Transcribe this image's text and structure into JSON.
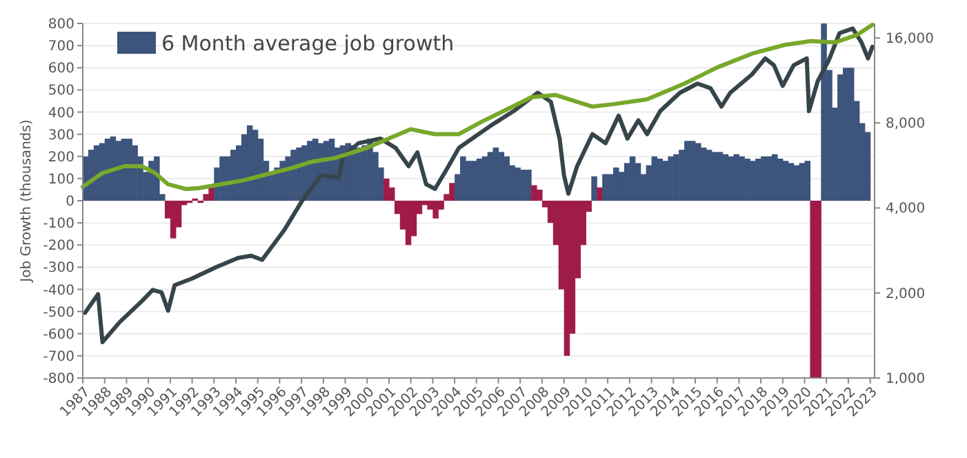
{
  "chart_data": {
    "type": "bar",
    "ylabel": "Job Growth (thousands)",
    "xlim": [
      1987,
      2023.2
    ],
    "xticks": [
      1987,
      1988,
      1989,
      1990,
      1991,
      1992,
      1993,
      1994,
      1995,
      1996,
      1997,
      1998,
      1999,
      2000,
      2001,
      2002,
      2003,
      2004,
      2005,
      2006,
      2007,
      2008,
      2009,
      2010,
      2011,
      2012,
      2013,
      2014,
      2015,
      2016,
      2017,
      2018,
      2019,
      2020,
      2021,
      2022,
      2023
    ],
    "ylim": [
      -800,
      800
    ],
    "yticks": [
      -800,
      -700,
      -600,
      -500,
      -400,
      -300,
      -200,
      -100,
      0,
      100,
      200,
      300,
      400,
      500,
      600,
      700,
      800
    ],
    "y2lim": [
      1000,
      18000
    ],
    "y2ticks": [
      {
        "value": 1000,
        "label": "1,000"
      },
      {
        "value": 2000,
        "label": "2,000"
      },
      {
        "value": 4000,
        "label": "4,000"
      },
      {
        "value": 8000,
        "label": "8,000"
      },
      {
        "value": 16000,
        "label": "16,000"
      }
    ],
    "log": "y2",
    "grid": "y",
    "legend": "top left",
    "series": [
      {
        "name": "6 Month average job growth",
        "color": "#3d557c",
        "x": [
          1987,
          1987.25,
          1987.5,
          1987.75,
          1988,
          1988.25,
          1988.5,
          1988.75,
          1989,
          1989.25,
          1989.5,
          1989.75,
          1990,
          1990.25,
          1990.5,
          1990.75,
          1991,
          1991.25,
          1991.5,
          1991.75,
          1992,
          1992.25,
          1992.5,
          1992.75,
          1993,
          1993.25,
          1993.5,
          1993.75,
          1994,
          1994.25,
          1994.5,
          1994.75,
          1995,
          1995.25,
          1995.5,
          1995.75,
          1996,
          1996.25,
          1996.5,
          1996.75,
          1997,
          1997.25,
          1997.5,
          1997.75,
          1998,
          1998.25,
          1998.5,
          1998.75,
          1999,
          1999.25,
          1999.5,
          1999.75,
          2000,
          2000.25,
          2000.5,
          2000.75,
          2001,
          2001.25,
          2001.5,
          2001.75,
          2002,
          2002.25,
          2002.5,
          2002.75,
          2003,
          2003.25,
          2003.5,
          2003.75,
          2004,
          2004.25,
          2004.5,
          2004.75,
          2005,
          2005.25,
          2005.5,
          2005.75,
          2006,
          2006.25,
          2006.5,
          2006.75,
          2007,
          2007.25,
          2007.5,
          2007.75,
          2008,
          2008.25,
          2008.5,
          2008.75,
          2009,
          2009.25,
          2009.5,
          2009.75,
          2010,
          2010.25,
          2010.5,
          2010.75,
          2011,
          2011.25,
          2011.5,
          2011.75,
          2012,
          2012.25,
          2012.5,
          2012.75,
          2013,
          2013.25,
          2013.5,
          2013.75,
          2014,
          2014.25,
          2014.5,
          2014.75,
          2015,
          2015.25,
          2015.5,
          2015.75,
          2016,
          2016.25,
          2016.5,
          2016.75,
          2017,
          2017.25,
          2017.5,
          2017.75,
          2018,
          2018.25,
          2018.5,
          2018.75,
          2019,
          2019.25,
          2019.5,
          2019.75,
          2020,
          2020.25,
          2020.5,
          2020.75,
          2021,
          2021.25,
          2021.5,
          2021.75,
          2022,
          2022.25,
          2022.5,
          2022.75
        ],
        "values": [
          200,
          230,
          250,
          260,
          280,
          290,
          270,
          280,
          280,
          250,
          200,
          130,
          180,
          200,
          30,
          -80,
          -170,
          -120,
          -20,
          -10,
          10,
          -10,
          30,
          60,
          150,
          200,
          200,
          230,
          250,
          300,
          340,
          320,
          280,
          180,
          120,
          150,
          180,
          200,
          230,
          240,
          250,
          270,
          280,
          260,
          270,
          280,
          240,
          250,
          260,
          250,
          240,
          250,
          280,
          220,
          150,
          100,
          60,
          -60,
          -130,
          -200,
          -160,
          -60,
          -20,
          -40,
          -80,
          -40,
          30,
          80,
          120,
          200,
          180,
          180,
          190,
          200,
          220,
          240,
          220,
          200,
          160,
          150,
          140,
          140,
          70,
          50,
          -30,
          -100,
          -200,
          -400,
          -700,
          -600,
          -350,
          -200,
          -50,
          110,
          60,
          120,
          120,
          150,
          130,
          170,
          200,
          170,
          120,
          160,
          200,
          190,
          180,
          200,
          210,
          230,
          270,
          270,
          260,
          240,
          230,
          220,
          220,
          210,
          200,
          210,
          200,
          190,
          180,
          190,
          200,
          200,
          210,
          190,
          180,
          170,
          160,
          170,
          180,
          -800,
          -800,
          800,
          590,
          420,
          570,
          600,
          600,
          450,
          350,
          310
        ],
        "colors": [
          "#3d557c",
          "#3d557c",
          "#3d557c",
          "#3d557c",
          "#3d557c",
          "#3d557c",
          "#3d557c",
          "#3d557c",
          "#3d557c",
          "#3d557c",
          "#3d557c",
          "#3d557c",
          "#3d557c",
          "#3d557c",
          "#3d557c",
          "#a01c48",
          "#a01c48",
          "#a01c48",
          "#a01c48",
          "#a01c48",
          "#a01c48",
          "#a01c48",
          "#a01c48",
          "#a01c48",
          "#3d557c",
          "#3d557c",
          "#3d557c",
          "#3d557c",
          "#3d557c",
          "#3d557c",
          "#3d557c",
          "#3d557c",
          "#3d557c",
          "#3d557c",
          "#3d557c",
          "#3d557c",
          "#3d557c",
          "#3d557c",
          "#3d557c",
          "#3d557c",
          "#3d557c",
          "#3d557c",
          "#3d557c",
          "#3d557c",
          "#3d557c",
          "#3d557c",
          "#3d557c",
          "#3d557c",
          "#3d557c",
          "#3d557c",
          "#3d557c",
          "#3d557c",
          "#3d557c",
          "#3d557c",
          "#3d557c",
          "#a01c48",
          "#a01c48",
          "#a01c48",
          "#a01c48",
          "#a01c48",
          "#a01c48",
          "#a01c48",
          "#a01c48",
          "#a01c48",
          "#a01c48",
          "#a01c48",
          "#a01c48",
          "#a01c48",
          "#3d557c",
          "#3d557c",
          "#3d557c",
          "#3d557c",
          "#3d557c",
          "#3d557c",
          "#3d557c",
          "#3d557c",
          "#3d557c",
          "#3d557c",
          "#3d557c",
          "#3d557c",
          "#3d557c",
          "#3d557c",
          "#a01c48",
          "#a01c48",
          "#a01c48",
          "#a01c48",
          "#a01c48",
          "#a01c48",
          "#a01c48",
          "#a01c48",
          "#a01c48",
          "#a01c48",
          "#a01c48",
          "#3d557c",
          "#a01c48",
          "#3d557c",
          "#3d557c",
          "#3d557c",
          "#3d557c",
          "#3d557c",
          "#3d557c",
          "#3d557c",
          "#3d557c",
          "#3d557c",
          "#3d557c",
          "#3d557c",
          "#3d557c",
          "#3d557c",
          "#3d557c",
          "#3d557c",
          "#3d557c",
          "#3d557c",
          "#3d557c",
          "#3d557c",
          "#3d557c",
          "#3d557c",
          "#3d557c",
          "#3d557c",
          "#3d557c",
          "#3d557c",
          "#3d557c",
          "#3d557c",
          "#3d557c",
          "#3d557c",
          "#3d557c",
          "#3d557c",
          "#3d557c",
          "#3d557c",
          "#3d557c",
          "#3d557c",
          "#3d557c",
          "#3d557c",
          "#3d557c",
          "#a01c48",
          "#a01c48",
          "#3d557c",
          "#3d557c",
          "#3d557c",
          "#3d557c",
          "#3d557c",
          "#3d557c",
          "#3d557c",
          "#3d557c",
          "#3d557c"
        ]
      },
      {
        "type": "line",
        "axis": "y2",
        "color": "#36454a",
        "x": [
          1987.1,
          1987.7,
          1987.9,
          1988.7,
          1989.7,
          1990.2,
          1990.6,
          1990.9,
          1991.2,
          1992.0,
          1993.1,
          1994.1,
          1994.7,
          1995.2,
          1996.2,
          1997.1,
          1997.9,
          1998.7,
          1998.9,
          1999.6,
          2000.6,
          2001.3,
          2001.9,
          2002.3,
          2002.7,
          2003.1,
          2003.6,
          2004.2,
          2004.8,
          2005.7,
          2006.7,
          2007.8,
          2008.4,
          2008.8,
          2009.0,
          2009.2,
          2009.6,
          2010.3,
          2010.9,
          2011.5,
          2011.9,
          2012.4,
          2012.8,
          2013.4,
          2014.3,
          2015.1,
          2015.7,
          2016.2,
          2016.6,
          2017.6,
          2018.2,
          2018.6,
          2019.0,
          2019.5,
          2020.1,
          2020.2,
          2020.6,
          2021.1,
          2021.6,
          2022.2,
          2022.6,
          2022.9,
          2023.1
        ],
        "values": [
          1700,
          1980,
          1340,
          1580,
          1870,
          2050,
          2010,
          1730,
          2130,
          2250,
          2470,
          2660,
          2710,
          2620,
          3330,
          4330,
          5220,
          5120,
          6060,
          6780,
          7040,
          6530,
          5620,
          6290,
          4850,
          4670,
          5420,
          6530,
          7040,
          7870,
          8810,
          10230,
          9500,
          7040,
          5220,
          4490,
          5620,
          7300,
          6780,
          8490,
          7040,
          8170,
          7300,
          8810,
          10230,
          11020,
          10620,
          9140,
          10230,
          11890,
          13540,
          12800,
          10820,
          12800,
          13540,
          8810,
          11240,
          13290,
          16640,
          17270,
          15430,
          13540,
          14880
        ]
      },
      {
        "type": "line",
        "axis": "y2",
        "color": "#78a82b",
        "x": [
          1987.0,
          1987.9,
          1988.9,
          1989.7,
          1990.3,
          1990.9,
          1991.7,
          1992.3,
          1993.3,
          1994.4,
          1995.4,
          1996.5,
          1997.5,
          1998.5,
          2000.0,
          2002.0,
          2003.1,
          2004.2,
          2005.2,
          2006.3,
          2007.5,
          2008.6,
          2009.6,
          2010.3,
          2011.3,
          2012.8,
          2014.5,
          2016.0,
          2017.6,
          2019.1,
          2020.3,
          2021.4,
          2022.4,
          2023.1
        ],
        "values": [
          4750,
          5320,
          5620,
          5620,
          5320,
          4850,
          4670,
          4700,
          4850,
          5020,
          5260,
          5520,
          5840,
          6000,
          6530,
          7600,
          7300,
          7300,
          8050,
          8860,
          9860,
          10050,
          9500,
          9140,
          9330,
          9700,
          11020,
          12570,
          14080,
          15120,
          15600,
          15430,
          16400,
          17810
        ]
      }
    ]
  }
}
